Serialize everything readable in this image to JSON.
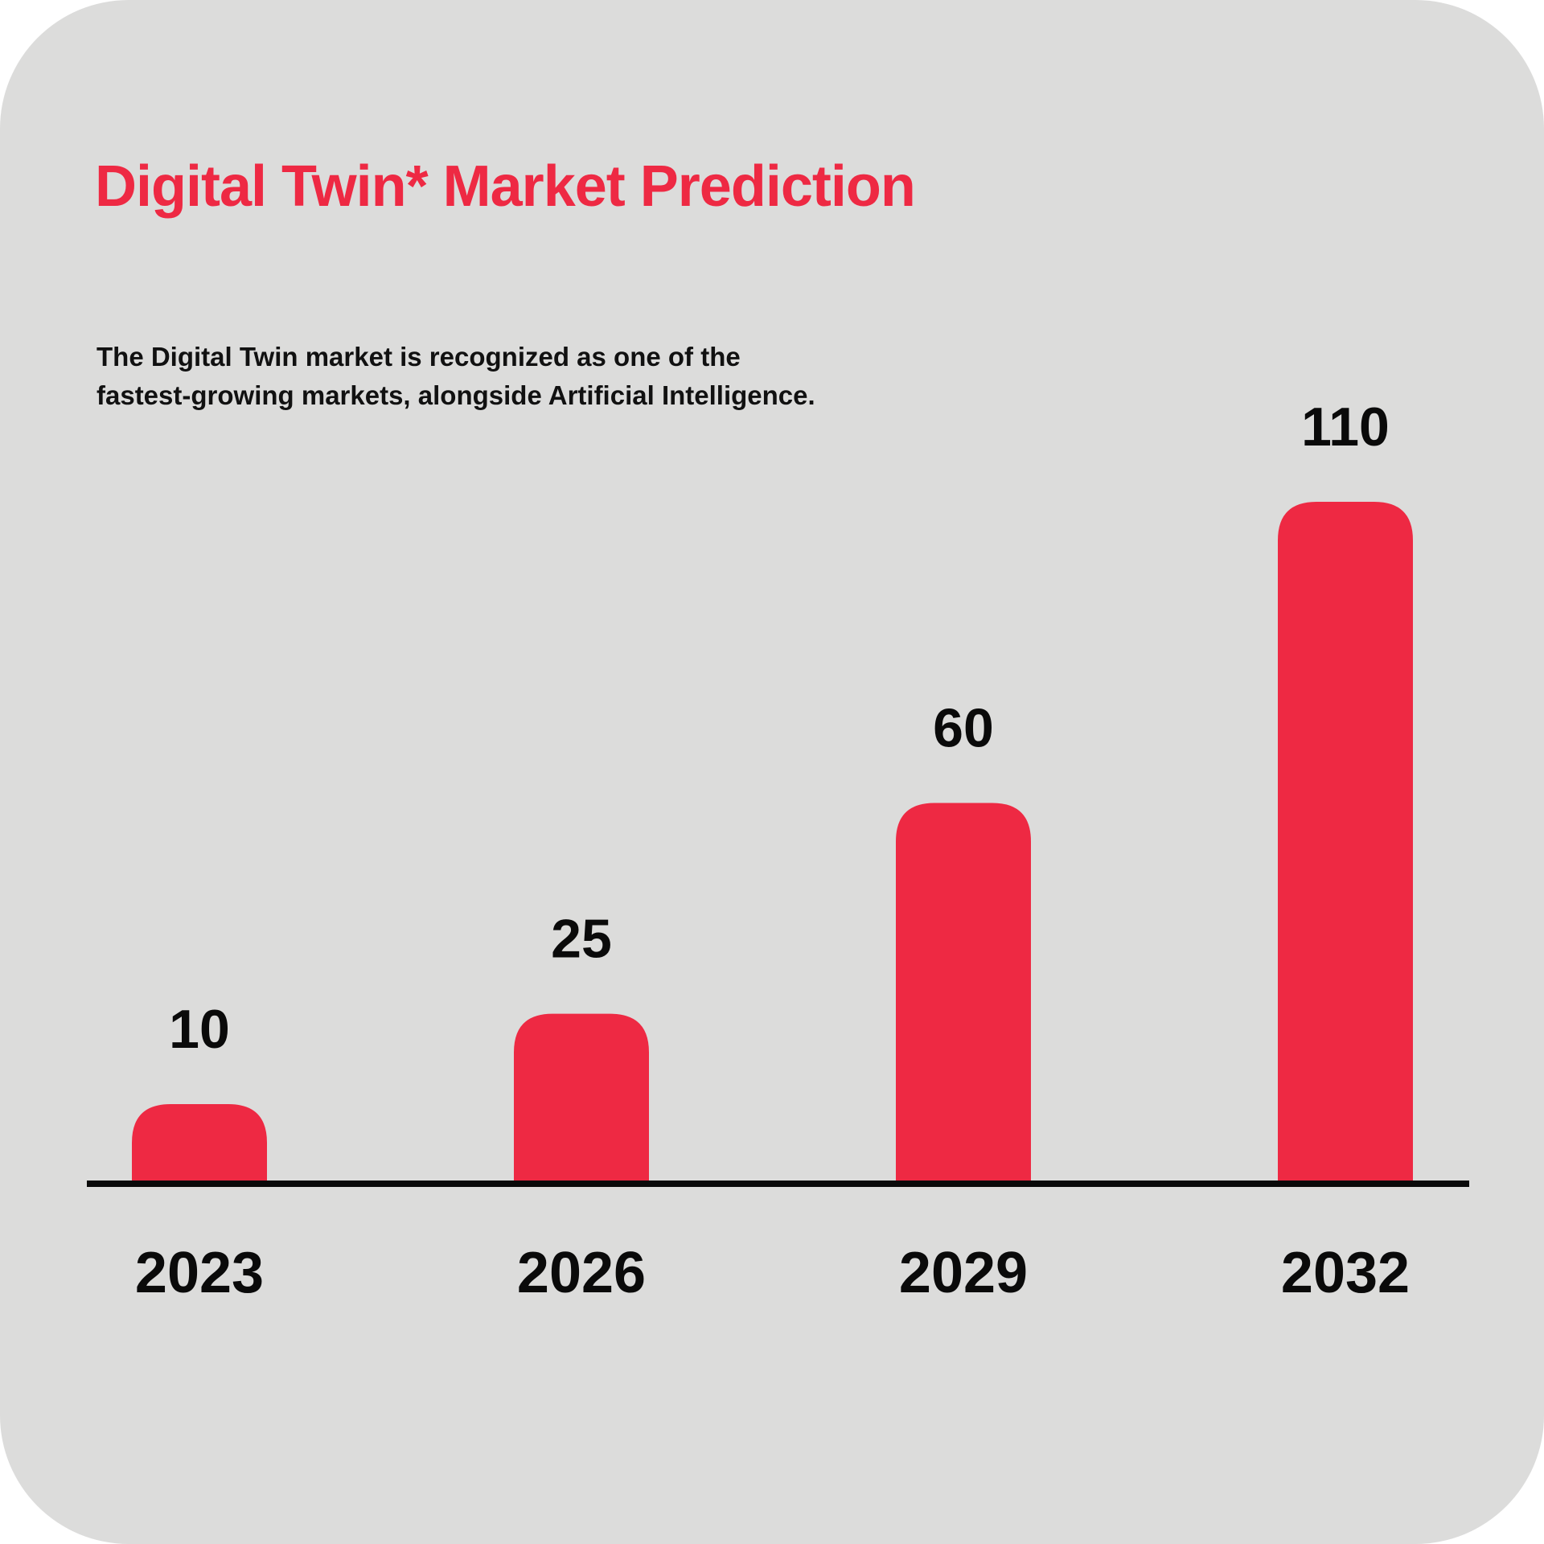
{
  "title": "Digital Twin* Market Prediction",
  "description_lines": [
    "The Digital Twin market is recognized as one of the",
    "fastest-growing markets, alongside Artificial Intelligence."
  ],
  "colors": {
    "background": "#dcdcdb",
    "bar": "#ee2943",
    "title": "#ee2943",
    "text": "#0a0a0a",
    "axis": "#0a0a0a"
  },
  "chart_data": {
    "type": "bar",
    "title": "Digital Twin* Market Prediction",
    "categories": [
      "2023",
      "2026",
      "2029",
      "2032"
    ],
    "values": [
      10,
      25,
      60,
      110
    ],
    "data_labels": [
      "10",
      "25",
      "60",
      "110"
    ],
    "xlabel": "",
    "ylabel": "",
    "ylim": [
      0,
      110
    ],
    "grid": false,
    "legend": "none"
  }
}
